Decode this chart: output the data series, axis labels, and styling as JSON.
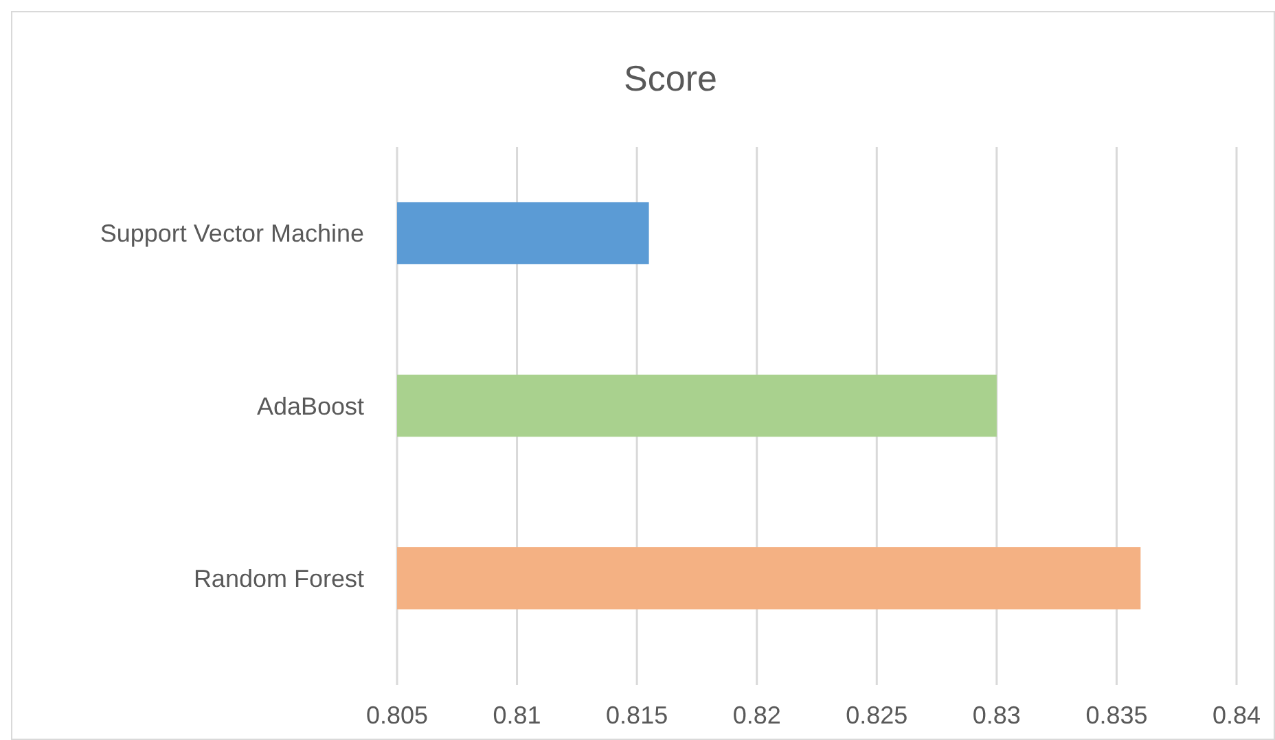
{
  "chart_data": {
    "type": "bar",
    "orientation": "horizontal",
    "title": "Score",
    "categories": [
      "Support Vector Machine",
      "AdaBoost",
      "Random Forest"
    ],
    "values": [
      0.8155,
      0.83,
      0.836
    ],
    "colors": [
      "#5b9bd5",
      "#a9d18e",
      "#f4b183"
    ],
    "xlim": [
      0.805,
      0.84
    ],
    "xticks": [
      0.805,
      0.81,
      0.815,
      0.82,
      0.825,
      0.83,
      0.835,
      0.84
    ],
    "grid": "x"
  }
}
